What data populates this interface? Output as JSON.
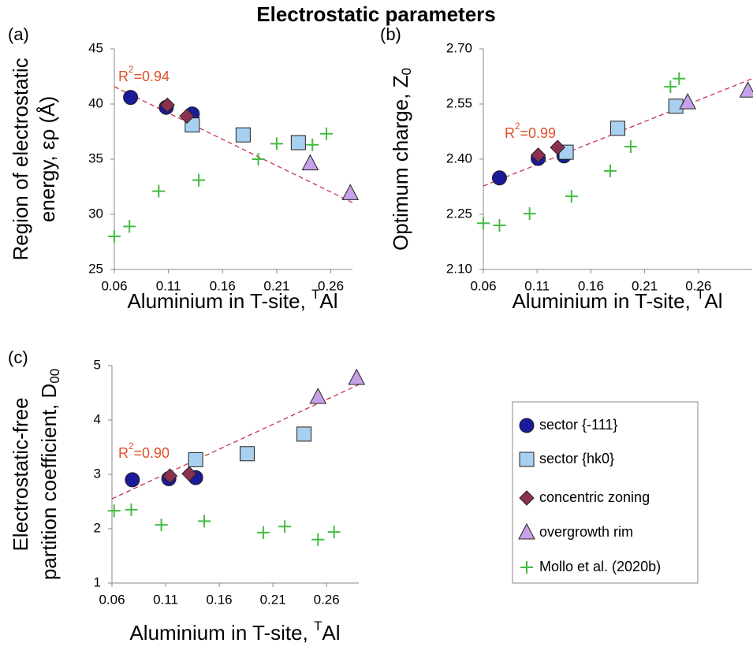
{
  "title": "Electrostatic parameters",
  "chart_data": [
    {
      "type": "scatter",
      "panel": "(a)",
      "xlabel": [
        "Aluminium in T-site, ",
        {
          "sup": "T"
        },
        "Al"
      ],
      "ylabel": [
        [
          "Region of electrostatic"
        ],
        [
          "energy, ερ (Å)"
        ]
      ],
      "xlim": [
        0.06,
        0.28
      ],
      "xticks": [
        0.06,
        0.11,
        0.16,
        0.21,
        0.26
      ],
      "ylim": [
        25,
        45
      ],
      "yticks": [
        25,
        30,
        35,
        40,
        45
      ],
      "series": [
        {
          "name": "sector {-111}",
          "marker": "circle",
          "color": "#1a1a9a",
          "x": [
            0.075,
            0.108,
            0.132
          ],
          "values": [
            40.6,
            39.7,
            39.1
          ]
        },
        {
          "name": "sector {hk0}",
          "marker": "square",
          "color": "#a8d0f0",
          "x": [
            0.132,
            0.179,
            0.23
          ],
          "values": [
            38.1,
            37.2,
            36.5
          ]
        },
        {
          "name": "concentric zoning",
          "marker": "diamond",
          "color": "#8c3050",
          "x": [
            0.109,
            0.127
          ],
          "values": [
            39.9,
            38.9
          ]
        },
        {
          "name": "overgrowth rim",
          "marker": "triangle",
          "color": "#c8a0e8",
          "x": [
            0.241,
            0.278
          ],
          "values": [
            34.6,
            31.9
          ]
        },
        {
          "name": "Mollo et al. (2020b)",
          "marker": "plus",
          "color": "#44bb44",
          "x": [
            0.06,
            0.074,
            0.101,
            0.138,
            0.193,
            0.21,
            0.243,
            0.256
          ],
          "values": [
            28.0,
            28.9,
            32.1,
            33.1,
            35.0,
            36.4,
            36.3,
            37.3
          ]
        }
      ],
      "trendline": {
        "color": "#c8304a",
        "x": [
          0.06,
          0.28
        ],
        "y": [
          41.57,
          31.07
        ]
      },
      "annotation": {
        "color": "#e0502a",
        "text": [
          "R",
          {
            "sup": "2"
          },
          "=0.94"
        ]
      }
    },
    {
      "type": "scatter",
      "panel": "(b)",
      "xlabel": [
        "Aluminium in T-site, ",
        {
          "sup": "T"
        },
        "Al"
      ],
      "ylabel": [
        [
          "Optimum charge, Z",
          {
            "sub": "0"
          }
        ]
      ],
      "xlim": [
        0.06,
        0.31
      ],
      "xticks": [
        0.06,
        0.11,
        0.16,
        0.21,
        0.26
      ],
      "ylim": [
        2.1,
        2.7
      ],
      "yticks": [
        {
          "value": 2.1,
          "label": "2.10"
        },
        2.25,
        {
          "value": 2.4,
          "label": "2.40"
        },
        2.55,
        {
          "value": 2.7,
          "label": "2.70"
        }
      ],
      "series": [
        {
          "name": "sector {-111}",
          "marker": "circle",
          "color": "#1a1a9a",
          "x": [
            0.075,
            0.111,
            0.135
          ],
          "values": [
            2.349,
            2.402,
            2.409
          ]
        },
        {
          "name": "sector {hk0}",
          "marker": "square",
          "color": "#a8d0f0",
          "x": [
            0.137,
            0.185,
            0.239
          ],
          "values": [
            2.419,
            2.484,
            2.544
          ]
        },
        {
          "name": "concentric zoning",
          "marker": "diamond",
          "color": "#8c3050",
          "x": [
            0.111,
            0.129
          ],
          "values": [
            2.411,
            2.432
          ]
        },
        {
          "name": "overgrowth rim",
          "marker": "triangle",
          "color": "#c8a0e8",
          "x": [
            0.25,
            0.306
          ],
          "values": [
            2.554,
            2.586
          ]
        },
        {
          "name": "Mollo et al. (2020b)",
          "marker": "plus",
          "color": "#44bb44",
          "x": [
            0.06,
            0.075,
            0.103,
            0.142,
            0.178,
            0.197,
            0.234,
            0.242
          ],
          "values": [
            2.226,
            2.22,
            2.252,
            2.299,
            2.368,
            2.434,
            2.597,
            2.619
          ]
        }
      ],
      "trendline": {
        "color": "#c8304a",
        "x": [
          0.06,
          0.31
        ],
        "y": [
          2.327,
          2.619
        ]
      },
      "annotation": {
        "color": "#e0502a",
        "text": [
          "R",
          {
            "sup": "2"
          },
          "=0.99"
        ]
      }
    },
    {
      "type": "scatter",
      "panel": "(c)",
      "xlabel": [
        "Aluminium in T-site, ",
        {
          "sup": "T"
        },
        "Al"
      ],
      "ylabel": [
        [
          "Electrostatic-free"
        ],
        [
          "partition coefficient, D",
          {
            "sub": "00"
          }
        ]
      ],
      "xlim": [
        0.06,
        0.29
      ],
      "xticks": [
        0.06,
        0.11,
        0.16,
        0.21,
        0.26
      ],
      "ylim": [
        1,
        5
      ],
      "yticks": [
        1,
        2,
        3,
        4,
        5
      ],
      "series": [
        {
          "name": "sector {-111}",
          "marker": "circle",
          "color": "#1a1a9a",
          "x": [
            0.079,
            0.113,
            0.138
          ],
          "values": [
            2.9,
            2.92,
            2.94
          ]
        },
        {
          "name": "sector {hk0}",
          "marker": "square",
          "color": "#a8d0f0",
          "x": [
            0.138,
            0.186,
            0.239
          ],
          "values": [
            3.27,
            3.38,
            3.74
          ]
        },
        {
          "name": "concentric zoning",
          "marker": "diamond",
          "color": "#8c3050",
          "x": [
            0.114,
            0.132
          ],
          "values": [
            2.97,
            3.01
          ]
        },
        {
          "name": "overgrowth rim",
          "marker": "triangle",
          "color": "#c8a0e8",
          "x": [
            0.252,
            0.288
          ],
          "values": [
            4.42,
            4.77
          ]
        },
        {
          "name": "Mollo et al. (2020b)",
          "marker": "plus",
          "color": "#44bb44",
          "x": [
            0.062,
            0.078,
            0.106,
            0.146,
            0.201,
            0.221,
            0.252,
            0.267
          ],
          "values": [
            2.33,
            2.35,
            2.07,
            2.14,
            1.93,
            2.04,
            1.8,
            1.94
          ]
        }
      ],
      "trendline": {
        "color": "#c8304a",
        "x": [
          0.06,
          0.29
        ],
        "y": [
          2.55,
          4.65
        ]
      },
      "annotation": {
        "color": "#e0502a",
        "text": [
          "R",
          {
            "sup": "2"
          },
          "=0.90"
        ]
      }
    }
  ]
}
